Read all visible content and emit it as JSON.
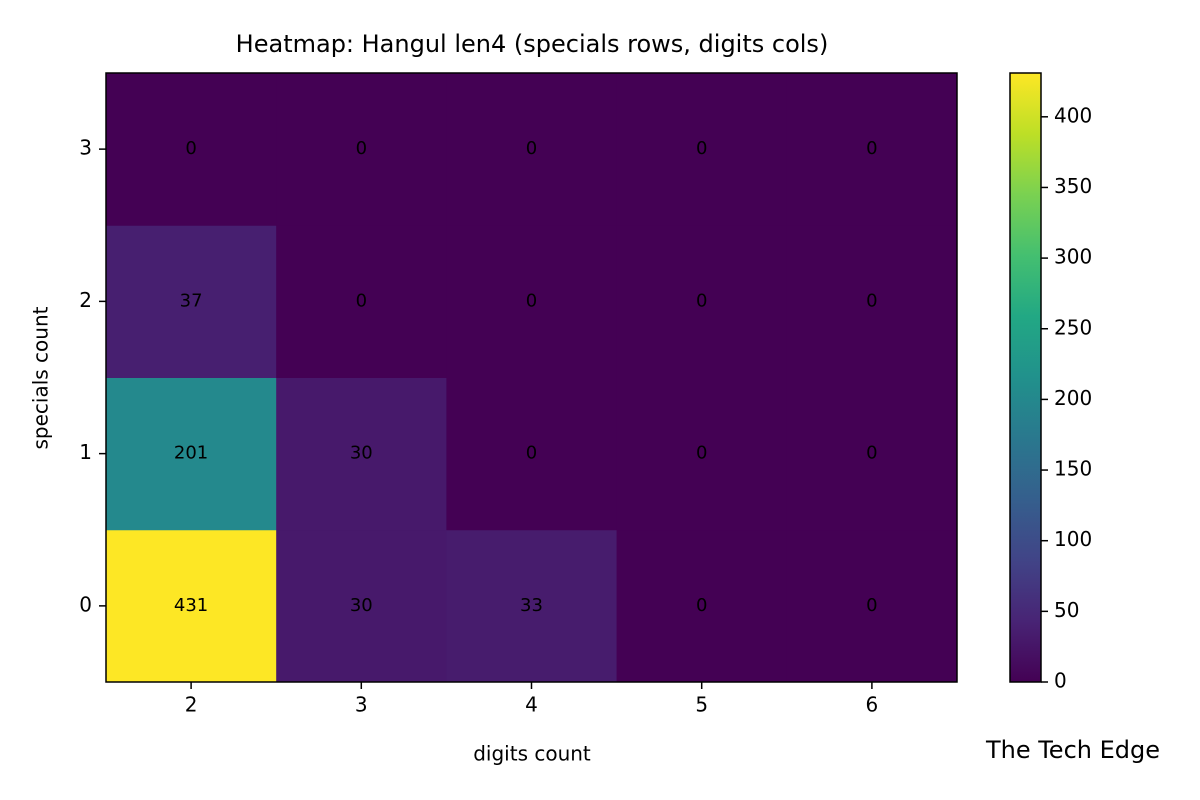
{
  "chart_data": {
    "type": "heatmap",
    "title": "Heatmap: Hangul len4 (specials rows, digits cols)",
    "xlabel": "digits count",
    "ylabel": "specials count",
    "x": [
      2,
      3,
      4,
      5,
      6
    ],
    "y": [
      0,
      1,
      2,
      3
    ],
    "values": [
      [
        431,
        30,
        33,
        0,
        0
      ],
      [
        201,
        30,
        0,
        0,
        0
      ],
      [
        37,
        0,
        0,
        0,
        0
      ],
      [
        0,
        0,
        0,
        0,
        0
      ]
    ],
    "colormap": "viridis",
    "zlim": [
      0,
      431
    ],
    "zticks": [
      0,
      50,
      100,
      150,
      200,
      250,
      300,
      350,
      400
    ],
    "watermark": "The Tech Edge"
  }
}
